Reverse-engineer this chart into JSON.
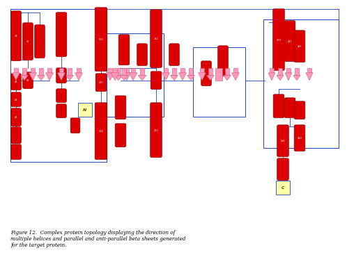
{
  "bg_color": "#ffffff",
  "helix_color": "#dd0000",
  "sheet_color": "#ff99bb",
  "connector_color": "#2244bb",
  "N_color": "#ffffaa",
  "C_color": "#ffffaa",
  "caption": "Figure 12.  Complex protein topology displaying the direction of\nmultiple helices and parallel and anti-parallel beta sheets generated\nfor the target protein."
}
